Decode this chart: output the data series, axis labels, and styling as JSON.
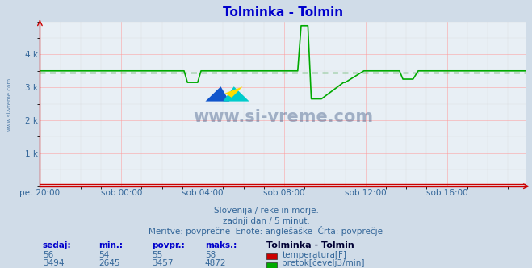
{
  "title": "Tolminka - Tolmin",
  "title_color": "#0000cc",
  "bg_color": "#d0dce8",
  "plot_bg_color": "#e8eff5",
  "grid_color_major": "#ff9999",
  "grid_color_minor": "#cccccc",
  "xlabel_ticks": [
    "pet 20:00",
    "sob 00:00",
    "sob 04:00",
    "sob 08:00",
    "sob 12:00",
    "sob 16:00"
  ],
  "ylim": [
    0,
    5000
  ],
  "yticks": [
    1000,
    2000,
    3000,
    4000
  ],
  "ytick_labels": [
    "1 k",
    "2 k",
    "3 k",
    "4 k"
  ],
  "temp_color": "#cc0000",
  "flow_color": "#00aa00",
  "avg_line_color": "#008800",
  "watermark": "www.si-vreme.com",
  "subtitle1": "Slovenija / reke in morje.",
  "subtitle2": "zadnji dan / 5 minut.",
  "subtitle3": "Meritve: povprečne  Enote: anglešaške  Črta: povprečje",
  "legend_title": "Tolminka - Tolmin",
  "stat_headers": [
    "sedaj:",
    "min.:",
    "povpr.:",
    "maks.:"
  ],
  "temp_stats": [
    56,
    54,
    55,
    58
  ],
  "flow_stats": [
    3494,
    2645,
    3457,
    4872
  ],
  "temp_label": "temperatura[F]",
  "flow_label": "pretok[čevelj3/min]",
  "n_points": 288,
  "flow_baseline": 3500,
  "flow_avg": 3457
}
